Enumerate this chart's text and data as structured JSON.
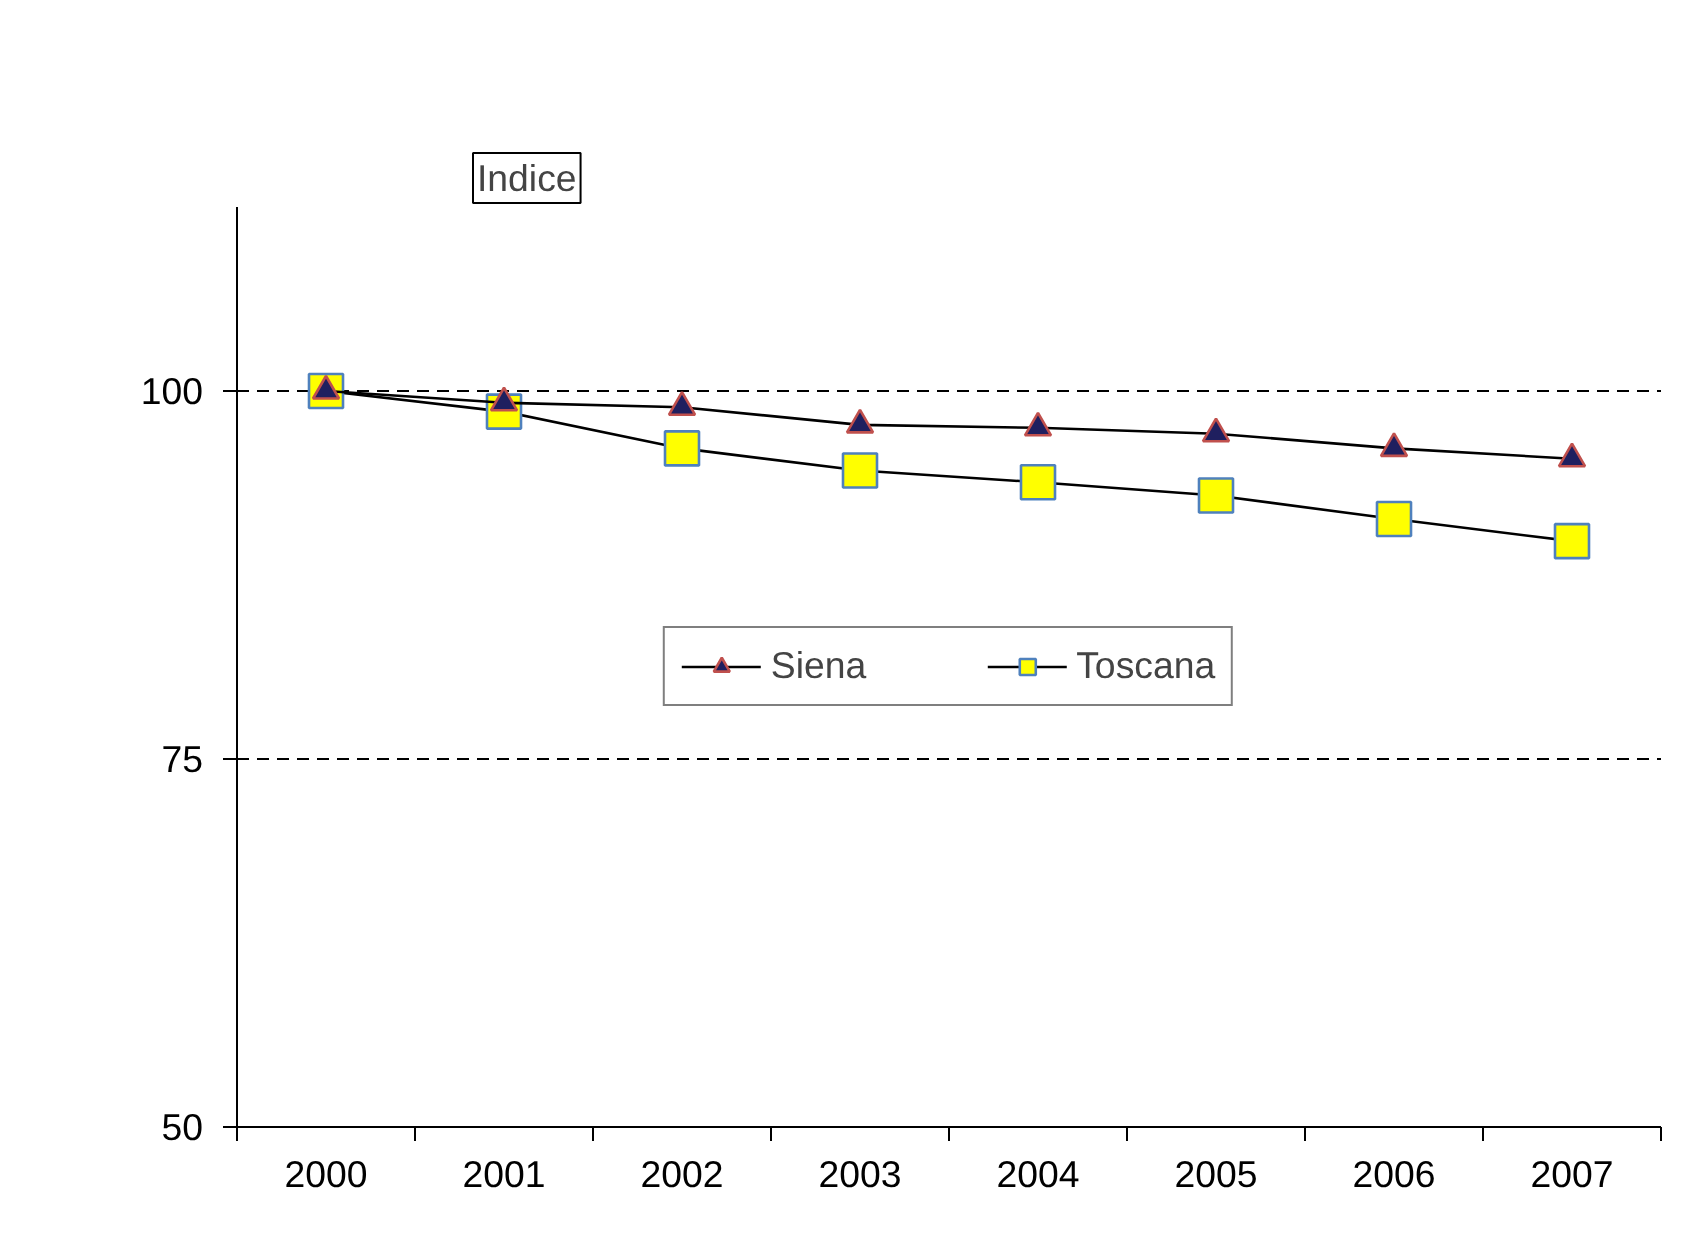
{
  "chart_data": {
    "type": "line",
    "categories": [
      "2000",
      "2001",
      "2002",
      "2003",
      "2004",
      "2005",
      "2006",
      "2007"
    ],
    "series": [
      {
        "name": "Siena",
        "color": "#1f1f5f",
        "marker": "triangle",
        "values": [
          100,
          99.2,
          98.9,
          97.7,
          97.5,
          97.1,
          96.1,
          95.4
        ]
      },
      {
        "name": "Toscana",
        "color": "#ffff00",
        "marker": "square",
        "values": [
          100,
          98.6,
          96.1,
          94.6,
          93.8,
          92.9,
          91.3,
          89.8
        ]
      }
    ],
    "annotations": [
      "Indice"
    ],
    "ylim": [
      50,
      112.5
    ],
    "yticks": [
      50,
      75,
      100
    ],
    "grid": "y",
    "legend": "center",
    "line_style": "solid"
  }
}
